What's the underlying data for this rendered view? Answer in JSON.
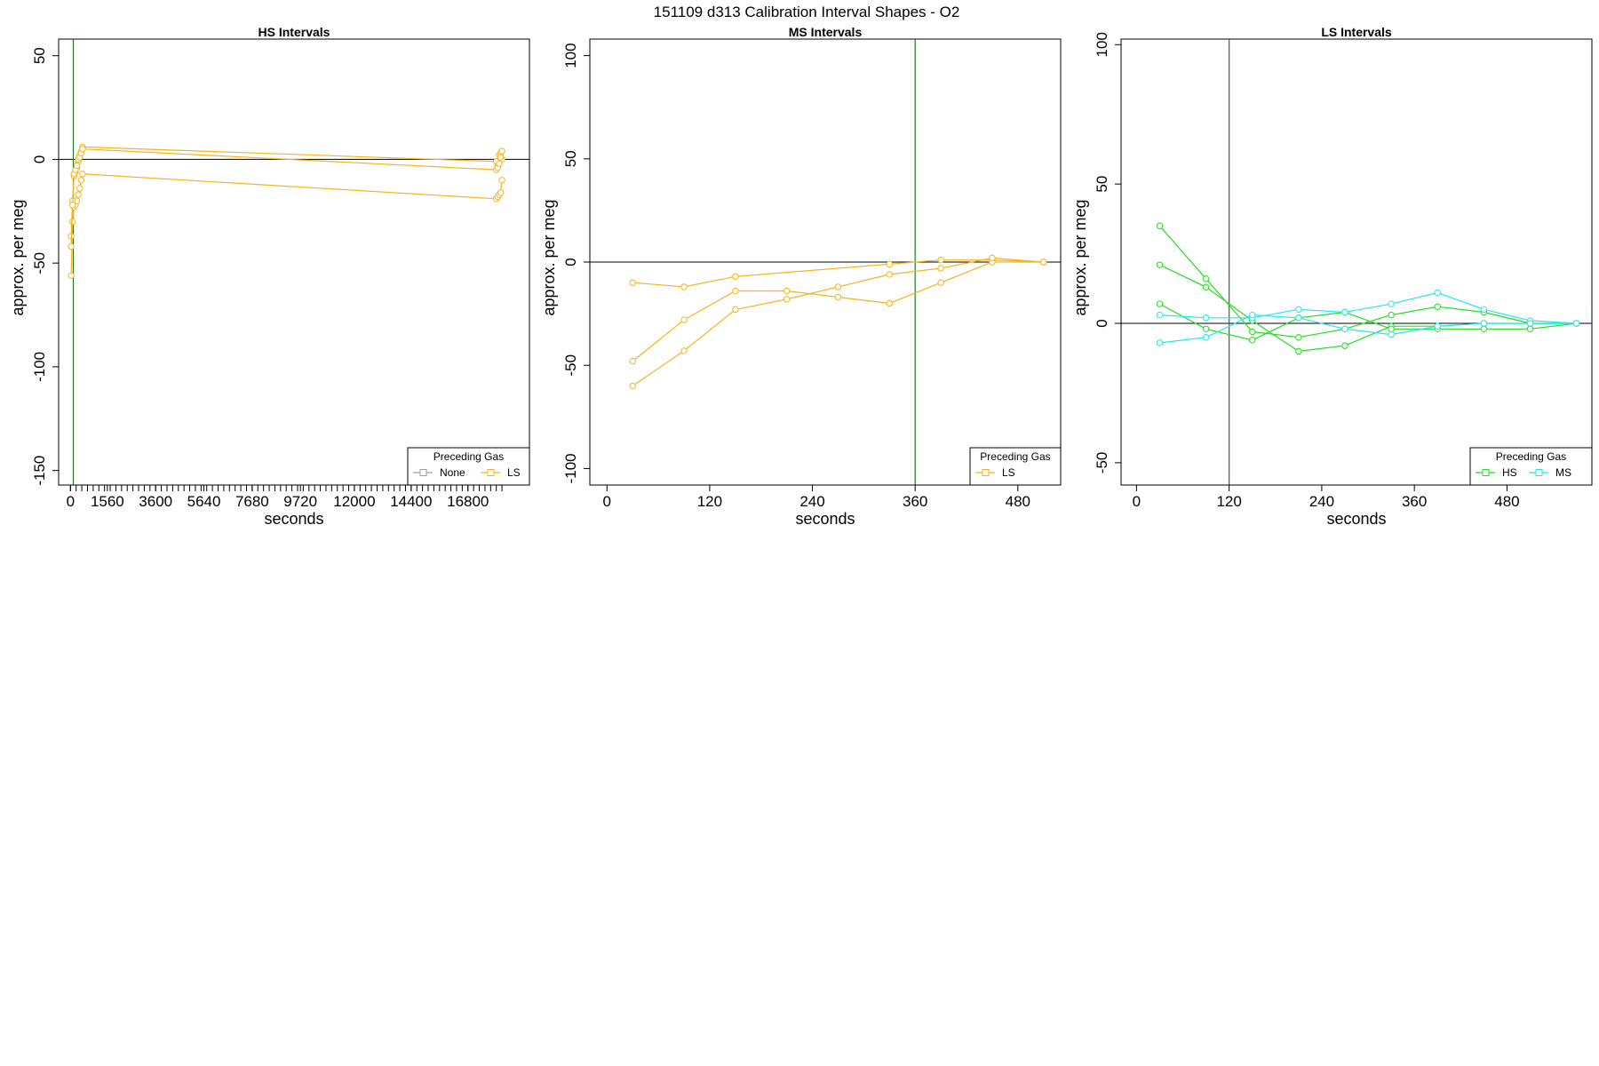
{
  "figure_title": "151109   d313   Calibration Interval Shapes - O2",
  "colors": {
    "None": "#9e9e9e",
    "LS": "#f5b31f",
    "HS": "#22dd22",
    "MS": "#22e8ee",
    "axis": "#000000",
    "marker_line": "#1f7a1f"
  },
  "chart_data": [
    {
      "type": "line",
      "title": "HS Intervals",
      "xlabel": "seconds",
      "ylabel": "approx. per meg",
      "xlim": [
        -500,
        19400
      ],
      "ylim": [
        -157,
        58
      ],
      "xticks": [
        0,
        1560,
        3600,
        5640,
        7680,
        9720,
        12000,
        14400,
        16800
      ],
      "minor_tick_step": 240,
      "minor_tick_range": [
        0,
        18240
      ],
      "yticks": [
        50,
        0,
        -50,
        -100,
        -150
      ],
      "vline": 120,
      "hline": 0,
      "legend": {
        "title": "Preceding Gas",
        "entries": [
          "None",
          "LS"
        ],
        "position": "bottom-right"
      },
      "series": [
        {
          "name": "LS",
          "x": [
            30,
            90,
            150,
            210,
            270,
            330,
            390,
            450,
            510,
            18000,
            18060,
            18120,
            18180,
            18240
          ],
          "y": [
            -56,
            -30,
            -23,
            -22,
            -20,
            -17,
            -14,
            -10,
            -7,
            -19,
            -18,
            -17,
            -16,
            -10
          ]
        },
        {
          "name": "LS",
          "x": [
            30,
            90,
            150,
            210,
            270,
            330,
            390,
            450,
            510,
            18000,
            18060,
            18120,
            18180,
            18240
          ],
          "y": [
            -37,
            -20,
            -8,
            -6,
            -4,
            -1,
            2,
            4,
            6,
            -1,
            -3,
            2,
            3,
            0
          ]
        },
        {
          "name": "LS",
          "x": [
            30,
            90,
            150,
            210,
            270,
            330,
            390,
            450,
            510,
            18000,
            18060,
            18120,
            18180,
            18240
          ],
          "y": [
            -42,
            -22,
            -7,
            -5,
            -3,
            0,
            1,
            3,
            5,
            -5,
            -4,
            -2,
            1,
            4
          ]
        }
      ]
    },
    {
      "type": "line",
      "title": "MS Intervals",
      "xlabel": "seconds",
      "ylabel": "approx. per meg",
      "xlim": [
        -20,
        530
      ],
      "ylim": [
        -108,
        108
      ],
      "xticks": [
        0,
        120,
        240,
        360,
        480
      ],
      "yticks": [
        100,
        50,
        0,
        -50,
        -100
      ],
      "vline": 360,
      "hline": 0,
      "legend": {
        "title": "Preceding Gas",
        "entries": [
          "LS"
        ],
        "position": "bottom-right"
      },
      "series": [
        {
          "name": "LS",
          "x": [
            30,
            90,
            150,
            330,
            390,
            450,
            510
          ],
          "y": [
            -10,
            -12,
            -7,
            -1,
            1,
            1,
            0
          ]
        },
        {
          "name": "LS",
          "x": [
            30,
            90,
            150,
            210,
            270,
            330,
            390,
            450,
            510
          ],
          "y": [
            -48,
            -28,
            -14,
            -14,
            -17,
            -20,
            -10,
            0,
            0
          ]
        },
        {
          "name": "LS",
          "x": [
            30,
            90,
            150,
            210,
            270,
            330,
            390,
            450,
            510
          ],
          "y": [
            -60,
            -43,
            -23,
            -18,
            -12,
            -6,
            -3,
            2,
            0
          ]
        }
      ]
    },
    {
      "type": "line",
      "title": "LS Intervals",
      "xlabel": "seconds",
      "ylabel": "approx. per meg",
      "xlim": [
        -20,
        590
      ],
      "ylim": [
        -58,
        102
      ],
      "xticks": [
        0,
        120,
        240,
        360,
        480
      ],
      "yticks": [
        100,
        50,
        0,
        -50
      ],
      "vline": 120,
      "hline": 0,
      "legend": {
        "title": "Preceding Gas",
        "entries": [
          "HS",
          "MS"
        ],
        "position": "bottom-right"
      },
      "series": [
        {
          "name": "HS",
          "x": [
            30,
            90,
            150,
            210,
            270,
            330,
            390,
            450,
            510,
            570
          ],
          "y": [
            35,
            16,
            -3,
            -5,
            -2,
            3,
            6,
            4,
            0,
            0
          ]
        },
        {
          "name": "HS",
          "x": [
            30,
            90,
            150,
            210,
            270,
            330,
            390,
            450,
            510,
            570
          ],
          "y": [
            21,
            13,
            1,
            -10,
            -8,
            -1,
            -1,
            0,
            0,
            0
          ]
        },
        {
          "name": "HS",
          "x": [
            30,
            90,
            150,
            210,
            270,
            330,
            390,
            450,
            510,
            570
          ],
          "y": [
            7,
            -2,
            -6,
            2,
            4,
            -2,
            -2,
            -2,
            -2,
            0
          ]
        },
        {
          "name": "MS",
          "x": [
            30,
            90,
            150,
            210,
            270,
            330,
            390,
            450,
            510,
            570
          ],
          "y": [
            3,
            2,
            2,
            5,
            4,
            7,
            11,
            5,
            1,
            0
          ]
        },
        {
          "name": "MS",
          "x": [
            30,
            90,
            150,
            210,
            270,
            330,
            390,
            450,
            510,
            570
          ],
          "y": [
            -7,
            -5,
            3,
            2,
            -2,
            -4,
            -1,
            0,
            0,
            0
          ]
        }
      ]
    }
  ]
}
